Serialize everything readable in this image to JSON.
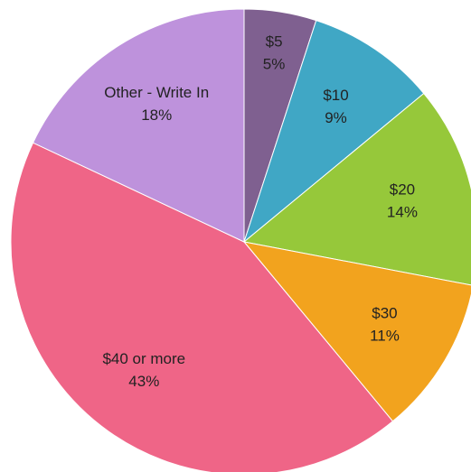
{
  "chart_data": {
    "type": "pie",
    "categories": [
      "$5",
      "$10",
      "$20",
      "$30",
      "$40 or more",
      "Other - Write In"
    ],
    "values": [
      5,
      9,
      14,
      11,
      43,
      18
    ],
    "value_labels": [
      "5%",
      "9%",
      "14%",
      "11%",
      "43%",
      "18%"
    ],
    "colors": [
      "#7f6090",
      "#40a7c5",
      "#96c83a",
      "#f2a31e",
      "#ef6587",
      "#be92dc"
    ]
  }
}
